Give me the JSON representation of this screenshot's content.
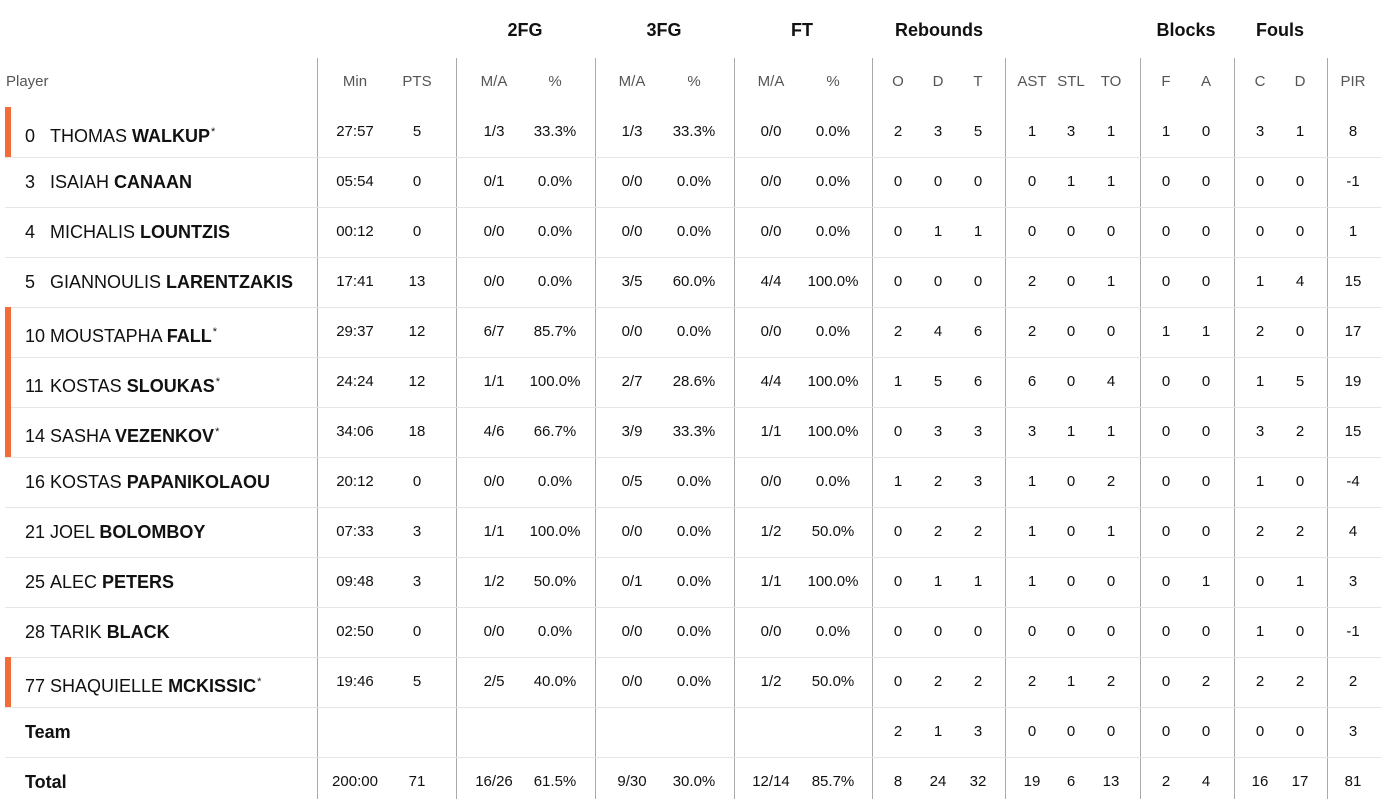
{
  "groups": [
    "2FG",
    "3FG",
    "FT",
    "Rebounds",
    "Blocks",
    "Fouls"
  ],
  "headers": [
    "Player",
    "Min",
    "PTS",
    "M/A",
    "%",
    "M/A",
    "%",
    "M/A",
    "%",
    "O",
    "D",
    "T",
    "AST",
    "STL",
    "TO",
    "F",
    "A",
    "C",
    "D",
    "PIR"
  ],
  "players": [
    {
      "number": "0",
      "first": "THOMAS",
      "last": "WALKUP",
      "starter": true,
      "stats": [
        "27:57",
        "5",
        "1/3",
        "33.3%",
        "1/3",
        "33.3%",
        "0/0",
        "0.0%",
        "2",
        "3",
        "5",
        "1",
        "3",
        "1",
        "1",
        "0",
        "3",
        "1",
        "8"
      ]
    },
    {
      "number": "3",
      "first": "ISAIAH",
      "last": "CANAAN",
      "starter": false,
      "stats": [
        "05:54",
        "0",
        "0/1",
        "0.0%",
        "0/0",
        "0.0%",
        "0/0",
        "0.0%",
        "0",
        "0",
        "0",
        "0",
        "1",
        "1",
        "0",
        "0",
        "0",
        "0",
        "-1"
      ]
    },
    {
      "number": "4",
      "first": "MICHALIS",
      "last": "LOUNTZIS",
      "starter": false,
      "stats": [
        "00:12",
        "0",
        "0/0",
        "0.0%",
        "0/0",
        "0.0%",
        "0/0",
        "0.0%",
        "0",
        "1",
        "1",
        "0",
        "0",
        "0",
        "0",
        "0",
        "0",
        "0",
        "1"
      ]
    },
    {
      "number": "5",
      "first": "GIANNOULIS",
      "last": "LARENTZAKIS",
      "starter": false,
      "stats": [
        "17:41",
        "13",
        "0/0",
        "0.0%",
        "3/5",
        "60.0%",
        "4/4",
        "100.0%",
        "0",
        "0",
        "0",
        "2",
        "0",
        "1",
        "0",
        "0",
        "1",
        "4",
        "15"
      ]
    },
    {
      "number": "10",
      "first": "MOUSTAPHA",
      "last": "FALL",
      "starter": true,
      "stats": [
        "29:37",
        "12",
        "6/7",
        "85.7%",
        "0/0",
        "0.0%",
        "0/0",
        "0.0%",
        "2",
        "4",
        "6",
        "2",
        "0",
        "0",
        "1",
        "1",
        "2",
        "0",
        "17"
      ]
    },
    {
      "number": "11",
      "first": "KOSTAS",
      "last": "SLOUKAS",
      "starter": true,
      "stats": [
        "24:24",
        "12",
        "1/1",
        "100.0%",
        "2/7",
        "28.6%",
        "4/4",
        "100.0%",
        "1",
        "5",
        "6",
        "6",
        "0",
        "4",
        "0",
        "0",
        "1",
        "5",
        "19"
      ]
    },
    {
      "number": "14",
      "first": "SASHA",
      "last": "VEZENKOV",
      "starter": true,
      "stats": [
        "34:06",
        "18",
        "4/6",
        "66.7%",
        "3/9",
        "33.3%",
        "1/1",
        "100.0%",
        "0",
        "3",
        "3",
        "3",
        "1",
        "1",
        "0",
        "0",
        "3",
        "2",
        "15"
      ]
    },
    {
      "number": "16",
      "first": "KOSTAS",
      "last": "PAPANIKOLAOU",
      "starter": false,
      "stats": [
        "20:12",
        "0",
        "0/0",
        "0.0%",
        "0/5",
        "0.0%",
        "0/0",
        "0.0%",
        "1",
        "2",
        "3",
        "1",
        "0",
        "2",
        "0",
        "0",
        "1",
        "0",
        "-4"
      ]
    },
    {
      "number": "21",
      "first": "JOEL",
      "last": "BOLOMBOY",
      "starter": false,
      "stats": [
        "07:33",
        "3",
        "1/1",
        "100.0%",
        "0/0",
        "0.0%",
        "1/2",
        "50.0%",
        "0",
        "2",
        "2",
        "1",
        "0",
        "1",
        "0",
        "0",
        "2",
        "2",
        "4"
      ]
    },
    {
      "number": "25",
      "first": "ALEC",
      "last": "PETERS",
      "starter": false,
      "stats": [
        "09:48",
        "3",
        "1/2",
        "50.0%",
        "0/1",
        "0.0%",
        "1/1",
        "100.0%",
        "0",
        "1",
        "1",
        "1",
        "0",
        "0",
        "0",
        "1",
        "0",
        "1",
        "3"
      ]
    },
    {
      "number": "28",
      "first": "TARIK",
      "last": "BLACK",
      "starter": false,
      "stats": [
        "02:50",
        "0",
        "0/0",
        "0.0%",
        "0/0",
        "0.0%",
        "0/0",
        "0.0%",
        "0",
        "0",
        "0",
        "0",
        "0",
        "0",
        "0",
        "0",
        "1",
        "0",
        "-1"
      ]
    },
    {
      "number": "77",
      "first": "SHAQUIELLE",
      "last": "MCKISSIC",
      "starter": true,
      "stats": [
        "19:46",
        "5",
        "2/5",
        "40.0%",
        "0/0",
        "0.0%",
        "1/2",
        "50.0%",
        "0",
        "2",
        "2",
        "2",
        "1",
        "2",
        "0",
        "2",
        "2",
        "2",
        "2"
      ]
    }
  ],
  "team": {
    "label": "Team",
    "stats": [
      "",
      "",
      "",
      "",
      "",
      "",
      "",
      "",
      "2",
      "1",
      "3",
      "0",
      "0",
      "0",
      "0",
      "0",
      "0",
      "0",
      "3"
    ]
  },
  "total": {
    "label": "Total",
    "stats": [
      "200:00",
      "71",
      "16/26",
      "61.5%",
      "9/30",
      "30.0%",
      "12/14",
      "85.7%",
      "8",
      "24",
      "32",
      "19",
      "6",
      "13",
      "2",
      "4",
      "16",
      "17",
      "81"
    ]
  },
  "colors": {
    "starter_marker": "#f26b38",
    "divider": "#a9a9a9",
    "row_line": "#e6e6e6"
  }
}
